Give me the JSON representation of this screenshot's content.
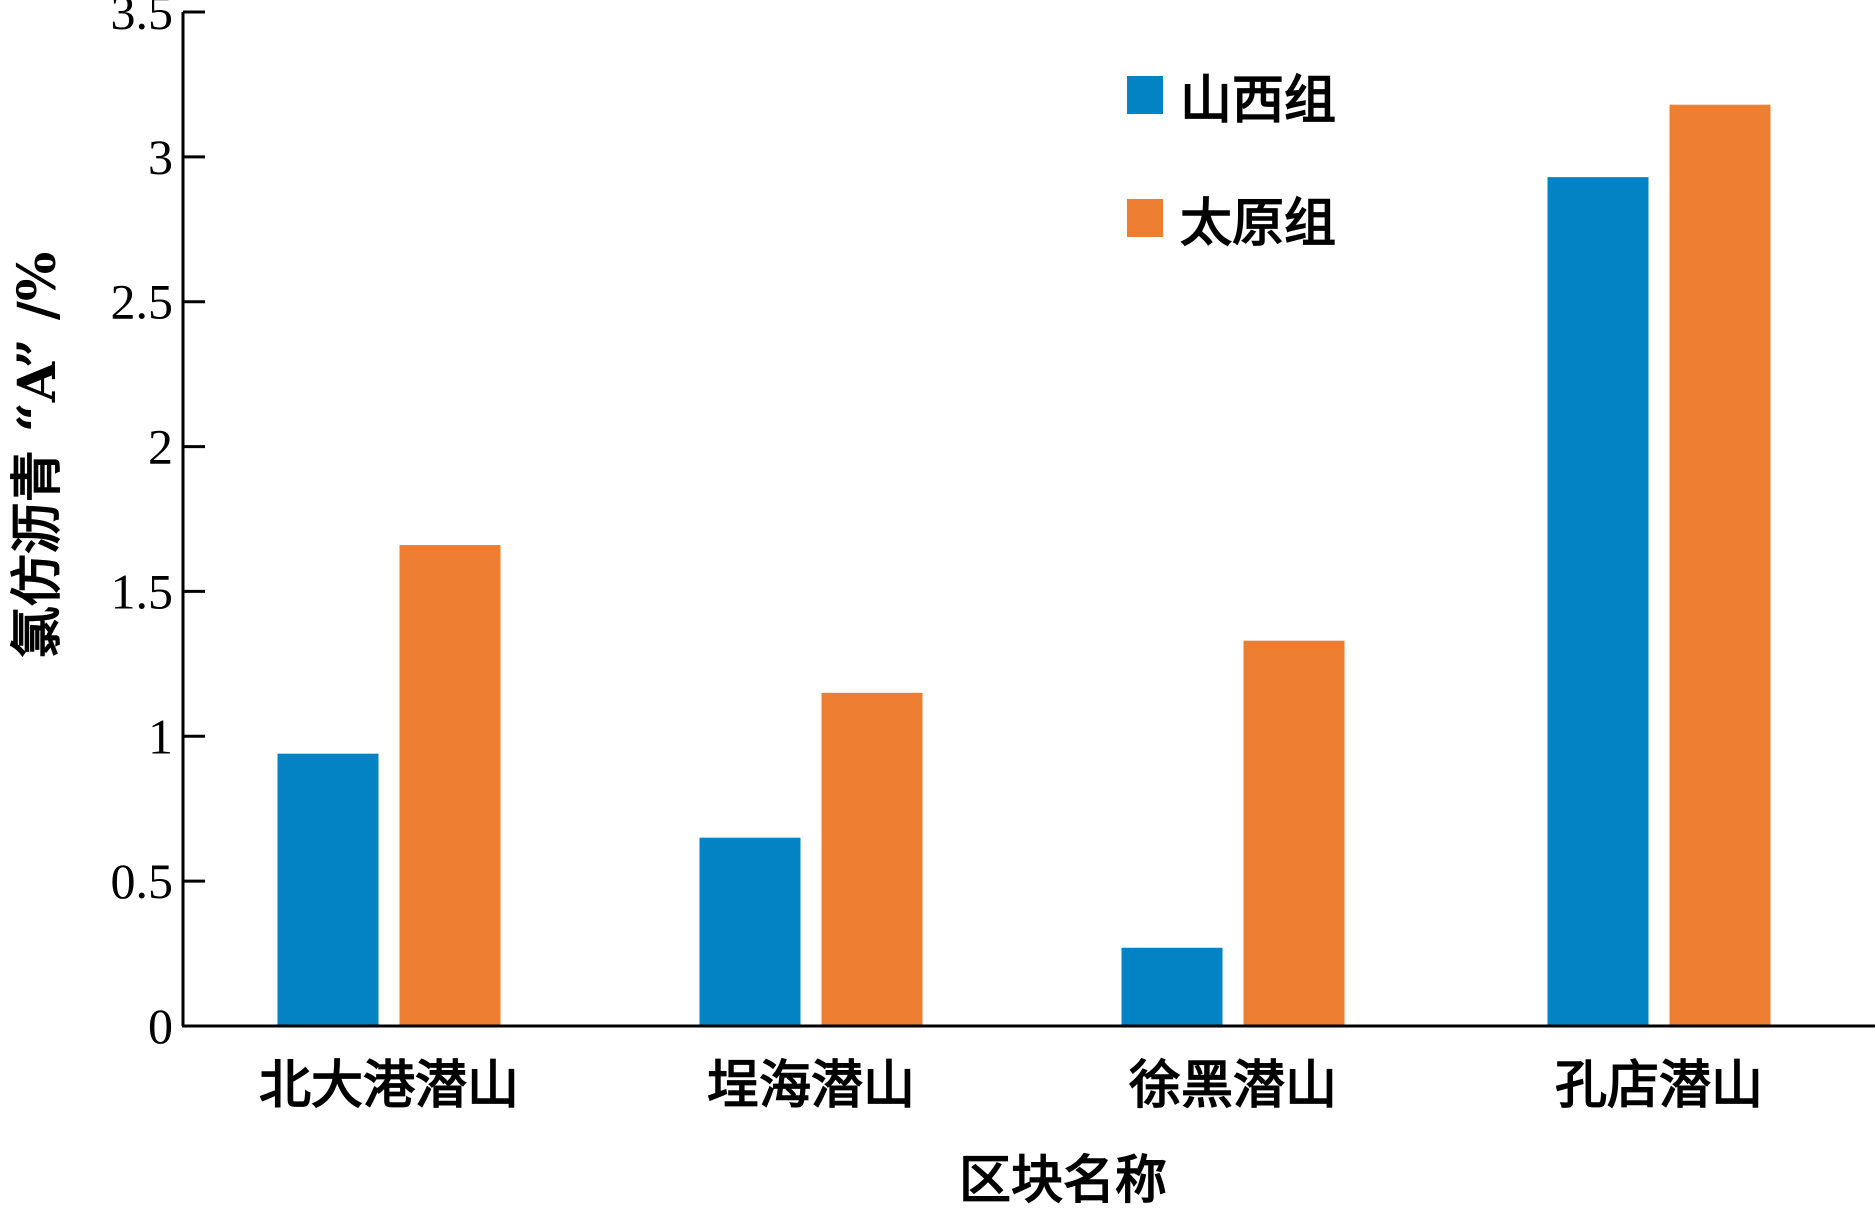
{
  "chart_data": {
    "type": "bar",
    "xlabel": "区块名称",
    "ylabel": "氯仿沥青 “A” /%",
    "ylim": [
      0,
      3.5
    ],
    "yticks": [
      0,
      0.5,
      1,
      1.5,
      2,
      2.5,
      3,
      3.5
    ],
    "ytick_labels": [
      "0",
      "0.5",
      "1",
      "1.5",
      "2",
      "2.5",
      "3",
      "3.5"
    ],
    "categories": [
      "北大港潜山",
      "埕海潜山",
      "徐黑潜山",
      "孔店潜山"
    ],
    "series": [
      {
        "name": "山西组",
        "color": "#0383c3",
        "values": [
          0.94,
          0.65,
          0.27,
          2.93
        ]
      },
      {
        "name": "太原组",
        "color": "#ed7d31",
        "values": [
          1.66,
          1.15,
          1.33,
          3.18
        ]
      }
    ],
    "legend": "top-right",
    "grid": false
  }
}
